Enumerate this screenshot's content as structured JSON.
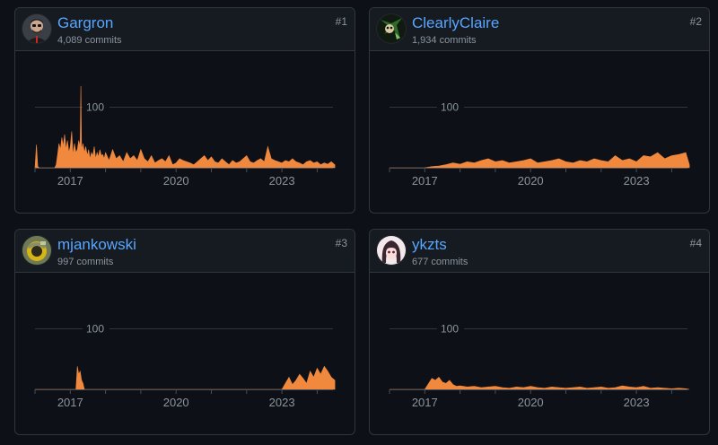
{
  "contributors": [
    {
      "login": "Gargron",
      "commits_label": "4,089 commits",
      "rank": "#1",
      "avatar": "gargron-avatar"
    },
    {
      "login": "ClearlyClaire",
      "commits_label": "1,934 commits",
      "rank": "#2",
      "avatar": "clearlyclaire-avatar"
    },
    {
      "login": "mjankowski",
      "commits_label": "997 commits",
      "rank": "#3",
      "avatar": "mjankowski-avatar"
    },
    {
      "login": "ykzts",
      "commits_label": "677 commits",
      "rank": "#4",
      "avatar": "ykzts-avatar"
    }
  ],
  "colors": {
    "link": "#58a6ff",
    "area": "#f0883e",
    "grid": "#30363d",
    "muted": "#8b949e"
  },
  "chart_data": [
    {
      "type": "area",
      "title": "Gargron",
      "x_range": [
        2016.0,
        2024.6
      ],
      "ylim": [
        0,
        160
      ],
      "gridline": 100,
      "xticks": [
        2017,
        2020,
        2023
      ],
      "series": [
        {
          "name": "Gargron",
          "x": [
            2016.0,
            2016.04,
            2016.08,
            2016.12,
            2016.16,
            2016.2,
            2016.24,
            2016.28,
            2016.32,
            2016.36,
            2016.4,
            2016.44,
            2016.48,
            2016.52,
            2016.56,
            2016.6,
            2016.64,
            2016.68,
            2016.72,
            2016.76,
            2016.8,
            2016.84,
            2016.88,
            2016.92,
            2016.96,
            2017.0,
            2017.04,
            2017.08,
            2017.12,
            2017.16,
            2017.2,
            2017.24,
            2017.28,
            2017.3,
            2017.32,
            2017.36,
            2017.4,
            2017.44,
            2017.48,
            2017.52,
            2017.56,
            2017.6,
            2017.64,
            2017.68,
            2017.72,
            2017.76,
            2017.8,
            2017.84,
            2017.88,
            2017.92,
            2017.96,
            2018.0,
            2018.1,
            2018.2,
            2018.3,
            2018.4,
            2018.5,
            2018.6,
            2018.7,
            2018.8,
            2018.9,
            2019.0,
            2019.1,
            2019.2,
            2019.3,
            2019.4,
            2019.5,
            2019.6,
            2019.7,
            2019.8,
            2019.9,
            2020.0,
            2020.1,
            2020.2,
            2020.3,
            2020.4,
            2020.5,
            2020.6,
            2020.7,
            2020.8,
            2020.9,
            2021.0,
            2021.1,
            2021.2,
            2021.3,
            2021.4,
            2021.5,
            2021.6,
            2021.7,
            2021.8,
            2021.9,
            2022.0,
            2022.1,
            2022.2,
            2022.3,
            2022.4,
            2022.5,
            2022.6,
            2022.7,
            2022.8,
            2022.9,
            2023.0,
            2023.1,
            2023.2,
            2023.3,
            2023.4,
            2023.5,
            2023.6,
            2023.7,
            2023.8,
            2023.9,
            2024.0,
            2024.1,
            2024.2,
            2024.3,
            2024.4,
            2024.5
          ],
          "values": [
            0,
            38,
            2,
            0,
            0,
            0,
            0,
            0,
            0,
            0,
            0,
            0,
            0,
            0,
            0,
            5,
            22,
            40,
            30,
            50,
            35,
            55,
            30,
            45,
            25,
            35,
            60,
            20,
            40,
            25,
            30,
            45,
            35,
            135,
            30,
            40,
            25,
            35,
            20,
            30,
            15,
            25,
            20,
            35,
            15,
            25,
            18,
            30,
            20,
            22,
            15,
            25,
            12,
            30,
            15,
            20,
            10,
            25,
            15,
            20,
            12,
            30,
            15,
            10,
            20,
            8,
            12,
            15,
            10,
            20,
            5,
            8,
            15,
            12,
            10,
            8,
            5,
            10,
            15,
            20,
            12,
            18,
            10,
            8,
            15,
            10,
            5,
            12,
            8,
            10,
            15,
            20,
            10,
            8,
            12,
            15,
            10,
            35,
            15,
            12,
            10,
            8,
            12,
            10,
            15,
            10,
            8,
            5,
            10,
            12,
            8,
            10,
            5,
            8,
            6,
            10,
            5
          ]
        }
      ]
    },
    {
      "type": "area",
      "title": "ClearlyClaire",
      "x_range": [
        2016.0,
        2024.6
      ],
      "ylim": [
        0,
        160
      ],
      "gridline": 100,
      "xticks": [
        2017,
        2020,
        2023
      ],
      "series": [
        {
          "name": "ClearlyClaire",
          "x": [
            2016.0,
            2016.5,
            2017.0,
            2017.2,
            2017.4,
            2017.6,
            2017.8,
            2018.0,
            2018.2,
            2018.4,
            2018.6,
            2018.8,
            2019.0,
            2019.2,
            2019.4,
            2019.6,
            2019.8,
            2020.0,
            2020.2,
            2020.4,
            2020.6,
            2020.8,
            2021.0,
            2021.2,
            2021.4,
            2021.6,
            2021.8,
            2022.0,
            2022.2,
            2022.4,
            2022.6,
            2022.8,
            2023.0,
            2023.2,
            2023.4,
            2023.6,
            2023.8,
            2024.0,
            2024.2,
            2024.4,
            2024.5
          ],
          "values": [
            0,
            0,
            0,
            2,
            3,
            5,
            8,
            6,
            10,
            8,
            12,
            15,
            10,
            12,
            8,
            10,
            12,
            15,
            8,
            10,
            12,
            15,
            10,
            8,
            12,
            10,
            15,
            12,
            10,
            20,
            12,
            15,
            10,
            20,
            18,
            25,
            15,
            20,
            22,
            25,
            5
          ]
        }
      ]
    },
    {
      "type": "area",
      "title": "mjankowski",
      "x_range": [
        2016.0,
        2024.6
      ],
      "ylim": [
        0,
        160
      ],
      "gridline": 100,
      "xticks": [
        2017,
        2020,
        2023
      ],
      "series": [
        {
          "name": "mjankowski",
          "x": [
            2016.0,
            2017.0,
            2017.16,
            2017.2,
            2017.24,
            2017.28,
            2017.32,
            2017.36,
            2017.4,
            2017.5,
            2022.8,
            2023.0,
            2023.1,
            2023.2,
            2023.3,
            2023.4,
            2023.5,
            2023.6,
            2023.7,
            2023.8,
            2023.9,
            2024.0,
            2024.1,
            2024.2,
            2024.3,
            2024.4,
            2024.5
          ],
          "values": [
            0,
            0,
            0,
            38,
            25,
            30,
            15,
            10,
            0,
            0,
            0,
            0,
            10,
            20,
            8,
            15,
            25,
            18,
            10,
            30,
            20,
            35,
            25,
            38,
            30,
            20,
            15
          ]
        }
      ]
    },
    {
      "type": "area",
      "title": "ykzts",
      "x_range": [
        2016.0,
        2024.6
      ],
      "ylim": [
        0,
        160
      ],
      "gridline": 100,
      "xticks": [
        2017,
        2020,
        2023
      ],
      "series": [
        {
          "name": "ykzts",
          "x": [
            2016.0,
            2017.0,
            2017.2,
            2017.3,
            2017.4,
            2017.5,
            2017.6,
            2017.7,
            2017.8,
            2017.9,
            2018.0,
            2018.2,
            2018.4,
            2018.6,
            2018.8,
            2019.0,
            2019.2,
            2019.4,
            2019.6,
            2019.8,
            2020.0,
            2020.2,
            2020.4,
            2020.6,
            2020.8,
            2021.0,
            2021.2,
            2021.4,
            2021.6,
            2021.8,
            2022.0,
            2022.2,
            2022.4,
            2022.6,
            2022.8,
            2023.0,
            2023.2,
            2023.4,
            2023.6,
            2023.8,
            2024.0,
            2024.2,
            2024.4,
            2024.5
          ],
          "values": [
            0,
            0,
            18,
            15,
            20,
            12,
            10,
            15,
            8,
            5,
            6,
            4,
            5,
            3,
            4,
            5,
            3,
            2,
            4,
            3,
            5,
            3,
            2,
            4,
            3,
            2,
            3,
            4,
            2,
            3,
            4,
            2,
            3,
            6,
            4,
            3,
            5,
            2,
            3,
            2,
            1,
            2,
            1,
            0
          ]
        }
      ]
    }
  ]
}
